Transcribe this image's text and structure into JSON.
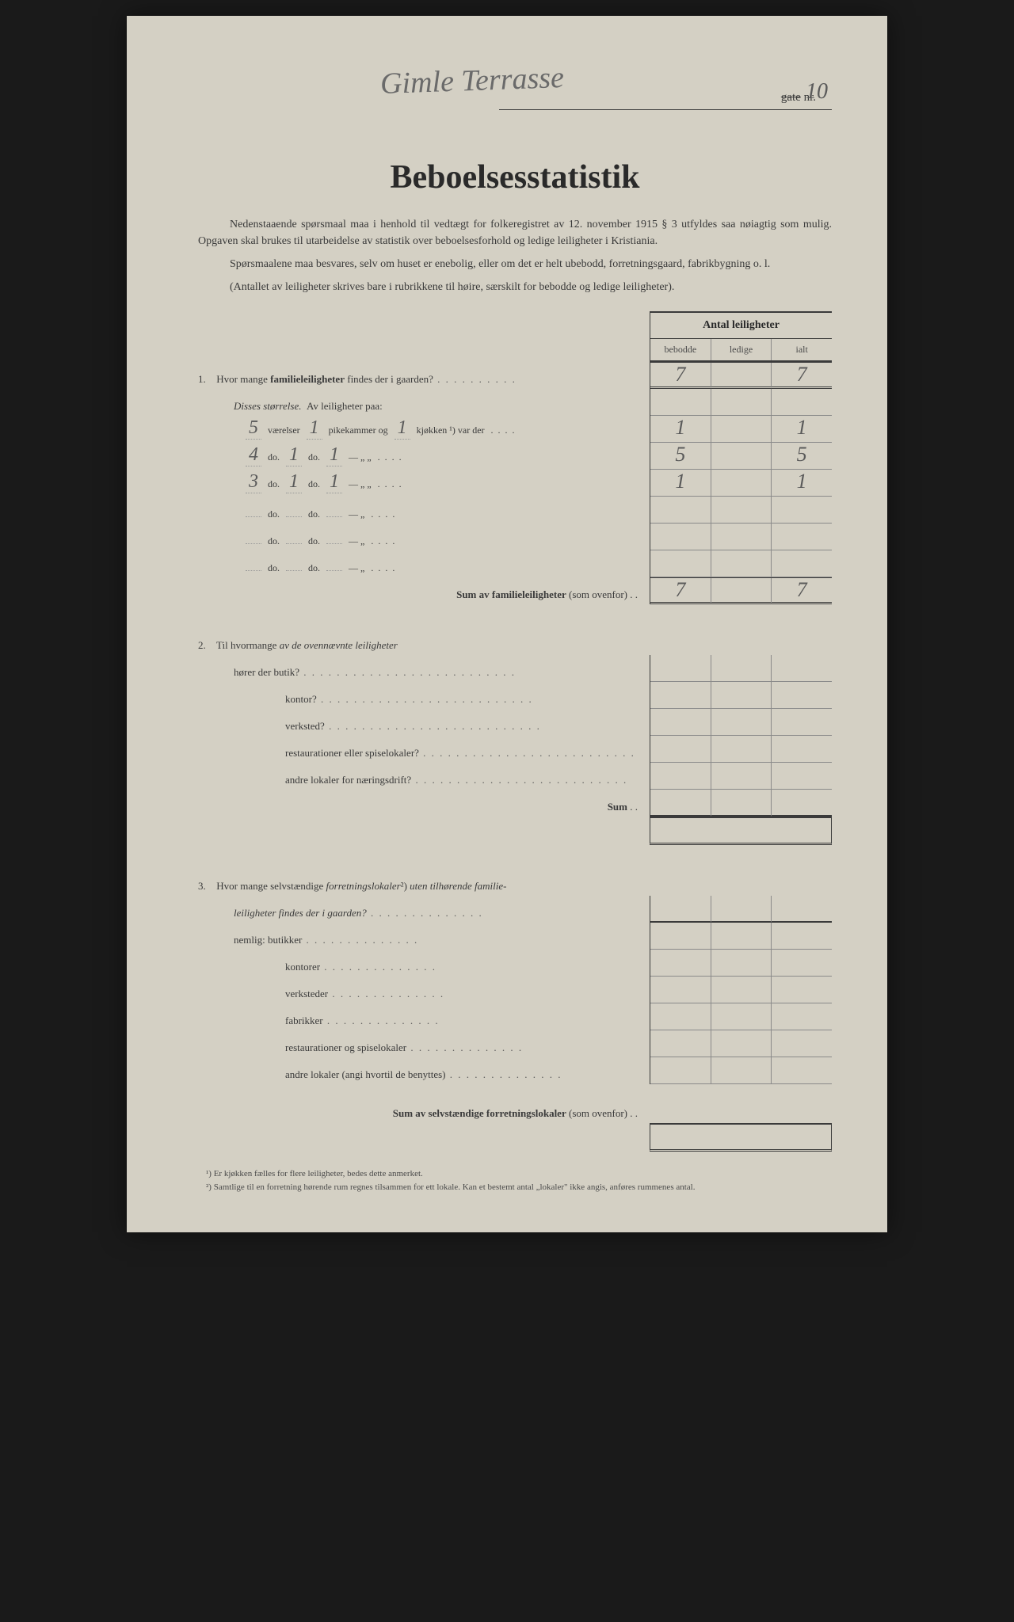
{
  "header": {
    "street_handwritten": "Gimle Terrasse",
    "gate_label": "gate",
    "nr_label": "nr.",
    "nr_value": "10"
  },
  "title": "Beboelsesstatistik",
  "intro": {
    "p1": "Nedenstaaende spørsmaal maa i henhold til vedtægt for folkeregistret av 12. november 1915 § 3 utfyldes saa nøiagtig som mulig. Opgaven skal brukes til utarbeidelse av statistik over beboelsesforhold og ledige leiligheter i Kristiania.",
    "p2": "Spørsmaalene maa besvares, selv om huset er enebolig, eller om det er helt ubebodd, forretningsgaard, fabrikbygning o. l.",
    "p3": "(Antallet av leiligheter skrives bare i rubrikkene til høire, særskilt for bebodde og ledige leiligheter)."
  },
  "table_header": {
    "title": "Antal leiligheter",
    "col1": "bebodde",
    "col2": "ledige",
    "col3": "ialt"
  },
  "q1": {
    "num": "1.",
    "text": "Hvor mange familieleiligheter findes der i gaarden?",
    "bebodde": "7",
    "ialt": "7",
    "disses": "Disses størrelse.",
    "av_label": "Av leiligheter paa:",
    "rows": [
      {
        "v": "5",
        "p": "1",
        "k": "1",
        "klab": "kjøkken ¹) var der",
        "b": "1",
        "i": "1"
      },
      {
        "v": "4",
        "p": "1",
        "k": "1",
        "klab": "—        „    „",
        "b": "5",
        "i": "5"
      },
      {
        "v": "3",
        "p": "1",
        "k": "1",
        "klab": "—        „    „",
        "b": "1",
        "i": "1"
      },
      {
        "v": "",
        "p": "",
        "k": "",
        "klab": "—        „",
        "b": "",
        "i": ""
      },
      {
        "v": "",
        "p": "",
        "k": "",
        "klab": "—        „",
        "b": "",
        "i": ""
      },
      {
        "v": "",
        "p": "",
        "k": "",
        "klab": "—        „",
        "b": "",
        "i": ""
      }
    ],
    "label_vaerelser": "værelser",
    "label_pikekammer": "pikekammer og",
    "label_do": "do.",
    "sum_label": "Sum av familieleiligheter (som ovenfor)",
    "sum_b": "7",
    "sum_i": "7"
  },
  "q2": {
    "num": "2.",
    "text": "Til hvormange av de ovennævnte leiligheter",
    "lines": [
      "hører der butik?",
      "kontor?",
      "verksted?",
      "restaurationer eller spiselokaler?",
      "andre lokaler for næringsdrift?"
    ],
    "sum_label": "Sum"
  },
  "q3": {
    "num": "3.",
    "text1": "Hvor mange selvstændige forretningslokaler²) uten tilhørende familie-",
    "text2": "leiligheter findes der i gaarden?",
    "nemlig": "nemlig:",
    "lines": [
      "butikker",
      "kontorer",
      "verksteder",
      "fabrikker",
      "restaurationer og spiselokaler",
      "andre lokaler (angi hvortil de benyttes)"
    ],
    "sum_label": "Sum av selvstændige forretningslokaler (som ovenfor)"
  },
  "footnotes": {
    "f1": "¹) Er kjøkken fælles for flere leiligheter, bedes dette anmerket.",
    "f2": "²) Samtlige til en forretning hørende rum regnes tilsammen for ett lokale. Kan et bestemt antal „lokaler\" ikke angis, anføres rummenes antal."
  }
}
